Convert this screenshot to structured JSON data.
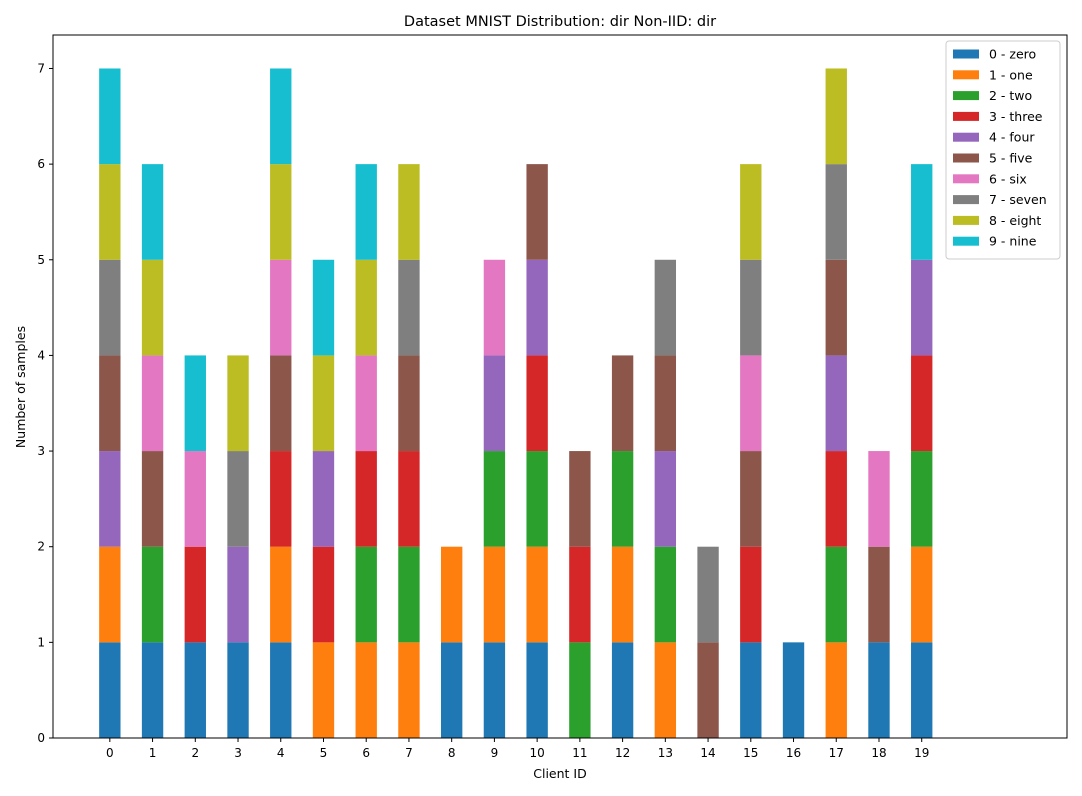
{
  "chart_data": {
    "type": "bar",
    "stacked": true,
    "title": "Dataset MNIST Distribution: dir Non-IID: dir",
    "xlabel": "Client ID",
    "ylabel": "Number of samples",
    "categories": [
      "0",
      "1",
      "2",
      "3",
      "4",
      "5",
      "6",
      "7",
      "8",
      "9",
      "10",
      "11",
      "12",
      "13",
      "14",
      "15",
      "16",
      "17",
      "18",
      "19"
    ],
    "xlim": [
      -1.33,
      22.4
    ],
    "ylim": [
      0,
      7.35
    ],
    "yticks": [
      "0",
      "1",
      "2",
      "3",
      "4",
      "5",
      "6",
      "7"
    ],
    "grid": false,
    "legend_position": "top-right",
    "series": [
      {
        "name": "0 - zero",
        "color": "#1f77b4",
        "values": [
          1,
          1,
          1,
          1,
          1,
          0,
          0,
          0,
          1,
          1,
          1,
          0,
          1,
          0,
          0,
          1,
          1,
          0,
          1,
          1
        ]
      },
      {
        "name": "1 - one",
        "color": "#ff7f0e",
        "values": [
          1,
          0,
          0,
          0,
          1,
          1,
          1,
          1,
          1,
          1,
          1,
          0,
          1,
          1,
          0,
          0,
          0,
          1,
          0,
          1
        ]
      },
      {
        "name": "2 - two",
        "color": "#2ca02c",
        "values": [
          0,
          1,
          0,
          0,
          0,
          0,
          1,
          1,
          0,
          1,
          1,
          1,
          1,
          1,
          0,
          0,
          0,
          1,
          0,
          1
        ]
      },
      {
        "name": "3 - three",
        "color": "#d62728",
        "values": [
          0,
          0,
          1,
          0,
          1,
          1,
          1,
          1,
          0,
          0,
          1,
          1,
          0,
          0,
          0,
          1,
          0,
          1,
          0,
          1
        ]
      },
      {
        "name": "4 - four",
        "color": "#9467bd",
        "values": [
          1,
          0,
          0,
          1,
          0,
          1,
          0,
          0,
          0,
          1,
          1,
          0,
          0,
          1,
          0,
          0,
          0,
          1,
          0,
          1
        ]
      },
      {
        "name": "5 - five",
        "color": "#8c564b",
        "values": [
          1,
          1,
          0,
          0,
          1,
          0,
          0,
          1,
          0,
          0,
          1,
          1,
          1,
          1,
          1,
          1,
          0,
          1,
          1,
          0
        ]
      },
      {
        "name": "6 - six",
        "color": "#e377c2",
        "values": [
          0,
          1,
          1,
          0,
          1,
          0,
          1,
          0,
          0,
          1,
          0,
          0,
          0,
          0,
          0,
          1,
          0,
          0,
          1,
          0
        ]
      },
      {
        "name": "7 - seven",
        "color": "#7f7f7f",
        "values": [
          1,
          0,
          0,
          1,
          0,
          0,
          0,
          1,
          0,
          0,
          0,
          0,
          0,
          1,
          1,
          1,
          0,
          1,
          0,
          0
        ]
      },
      {
        "name": "8 - eight",
        "color": "#bcbd22",
        "values": [
          1,
          1,
          0,
          1,
          1,
          1,
          1,
          1,
          0,
          0,
          0,
          0,
          0,
          0,
          0,
          1,
          0,
          1,
          0,
          0
        ]
      },
      {
        "name": "9 - nine",
        "color": "#17becf",
        "values": [
          1,
          1,
          1,
          0,
          1,
          1,
          1,
          0,
          0,
          0,
          0,
          0,
          0,
          0,
          0,
          0,
          0,
          0,
          0,
          1
        ]
      }
    ]
  }
}
